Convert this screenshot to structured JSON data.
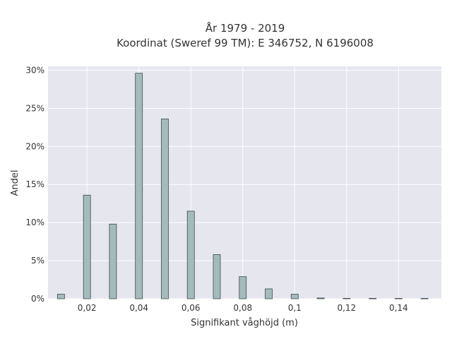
{
  "chart_data": {
    "type": "bar",
    "title_lines": [
      "År 1979 - 2019",
      "Koordinat (Sweref 99 TM): E 346752, N 6196008"
    ],
    "xlabel": "Signifikant våghöjd (m)",
    "ylabel": "Andel",
    "x": [
      0.01,
      0.02,
      0.03,
      0.04,
      0.05,
      0.06,
      0.07,
      0.08,
      0.09,
      0.1,
      0.11,
      0.12,
      0.13,
      0.14,
      0.15
    ],
    "values": [
      0.6,
      13.6,
      9.8,
      29.6,
      23.6,
      11.5,
      5.8,
      2.9,
      1.3,
      0.6,
      0.1,
      0.05,
      0.05,
      0.05,
      0.05
    ],
    "xlim": [
      0.005,
      0.1565
    ],
    "ylim": [
      0,
      30.5
    ],
    "xticks": [
      {
        "value": 0.02,
        "label": "0,02"
      },
      {
        "value": 0.04,
        "label": "0,04"
      },
      {
        "value": 0.06,
        "label": "0,06"
      },
      {
        "value": 0.08,
        "label": "0,08"
      },
      {
        "value": 0.1,
        "label": "0,1"
      },
      {
        "value": 0.12,
        "label": "0,12"
      },
      {
        "value": 0.14,
        "label": "0,14"
      }
    ],
    "yticks": [
      {
        "value": 0,
        "label": "0%"
      },
      {
        "value": 5,
        "label": "5%"
      },
      {
        "value": 10,
        "label": "10%"
      },
      {
        "value": 15,
        "label": "15%"
      },
      {
        "value": 20,
        "label": "20%"
      },
      {
        "value": 25,
        "label": "25%"
      },
      {
        "value": 30,
        "label": "30%"
      }
    ],
    "grid": true,
    "colors": {
      "bar_fill": "#a4bbbd",
      "bar_stroke": "#3d4a4b",
      "plot_bg": "#e5e6ee",
      "grid": "#ffffff"
    }
  }
}
